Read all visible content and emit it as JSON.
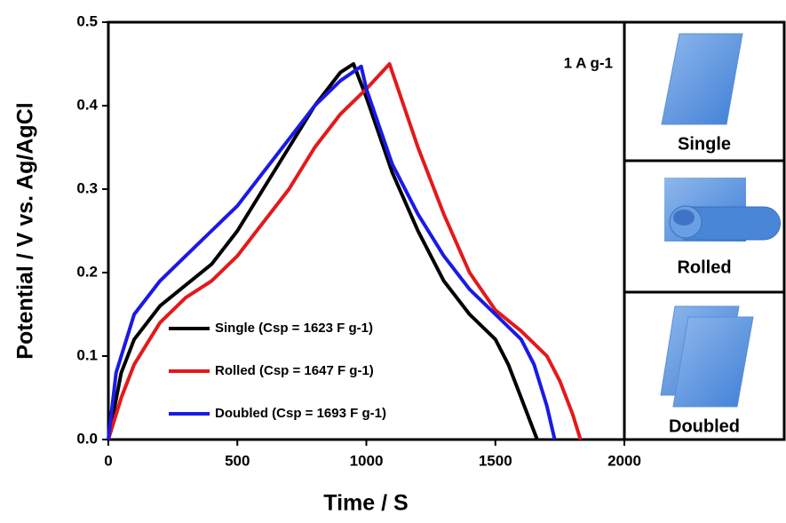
{
  "chart_data": {
    "type": "line",
    "x_label": "Time / S",
    "y_label": "Potential / V vs. Ag/AgCl",
    "annotation": "1 A g-1",
    "panels": [
      "Single",
      "Rolled",
      "Doubled"
    ],
    "xlim": [
      0,
      2000
    ],
    "ylim": [
      0,
      0.5
    ],
    "xticks": [
      0,
      500,
      1000,
      1500,
      2000
    ],
    "yticks": [
      {
        "value": 0,
        "label": "0.0"
      },
      0.1,
      0.2,
      0.3,
      0.4,
      0.5
    ],
    "series": [
      {
        "name": "Single (Csp = 1623 F g-1)",
        "color": "#000000",
        "x": [
          0,
          50,
          100,
          200,
          300,
          400,
          500,
          600,
          700,
          800,
          900,
          950,
          1000,
          1100,
          1200,
          1300,
          1400,
          1500,
          1550,
          1600,
          1662
        ],
        "values": [
          0,
          0.08,
          0.12,
          0.16,
          0.185,
          0.21,
          0.25,
          0.3,
          0.35,
          0.4,
          0.44,
          0.45,
          0.41,
          0.32,
          0.25,
          0.19,
          0.15,
          0.12,
          0.09,
          0.05,
          0
        ]
      },
      {
        "name": "Rolled (Csp = 1647 F g-1)",
        "color": "#e3191b",
        "x": [
          0,
          50,
          100,
          200,
          300,
          400,
          500,
          600,
          700,
          800,
          900,
          1000,
          1090,
          1200,
          1300,
          1400,
          1500,
          1600,
          1700,
          1750,
          1800,
          1830
        ],
        "values": [
          0,
          0.05,
          0.09,
          0.14,
          0.17,
          0.19,
          0.22,
          0.26,
          0.3,
          0.35,
          0.39,
          0.42,
          0.45,
          0.35,
          0.27,
          0.2,
          0.155,
          0.13,
          0.1,
          0.07,
          0.03,
          0
        ]
      },
      {
        "name": "Doubled (Csp = 1693 F g-1)",
        "color": "#1a1ae6",
        "x": [
          0,
          30,
          100,
          200,
          300,
          400,
          500,
          600,
          700,
          800,
          900,
          980,
          1000,
          1100,
          1200,
          1300,
          1400,
          1500,
          1600,
          1650,
          1700,
          1730
        ],
        "values": [
          0,
          0.08,
          0.15,
          0.19,
          0.22,
          0.25,
          0.28,
          0.32,
          0.36,
          0.4,
          0.43,
          0.447,
          0.42,
          0.33,
          0.27,
          0.22,
          0.18,
          0.15,
          0.12,
          0.09,
          0.04,
          0
        ]
      }
    ]
  }
}
